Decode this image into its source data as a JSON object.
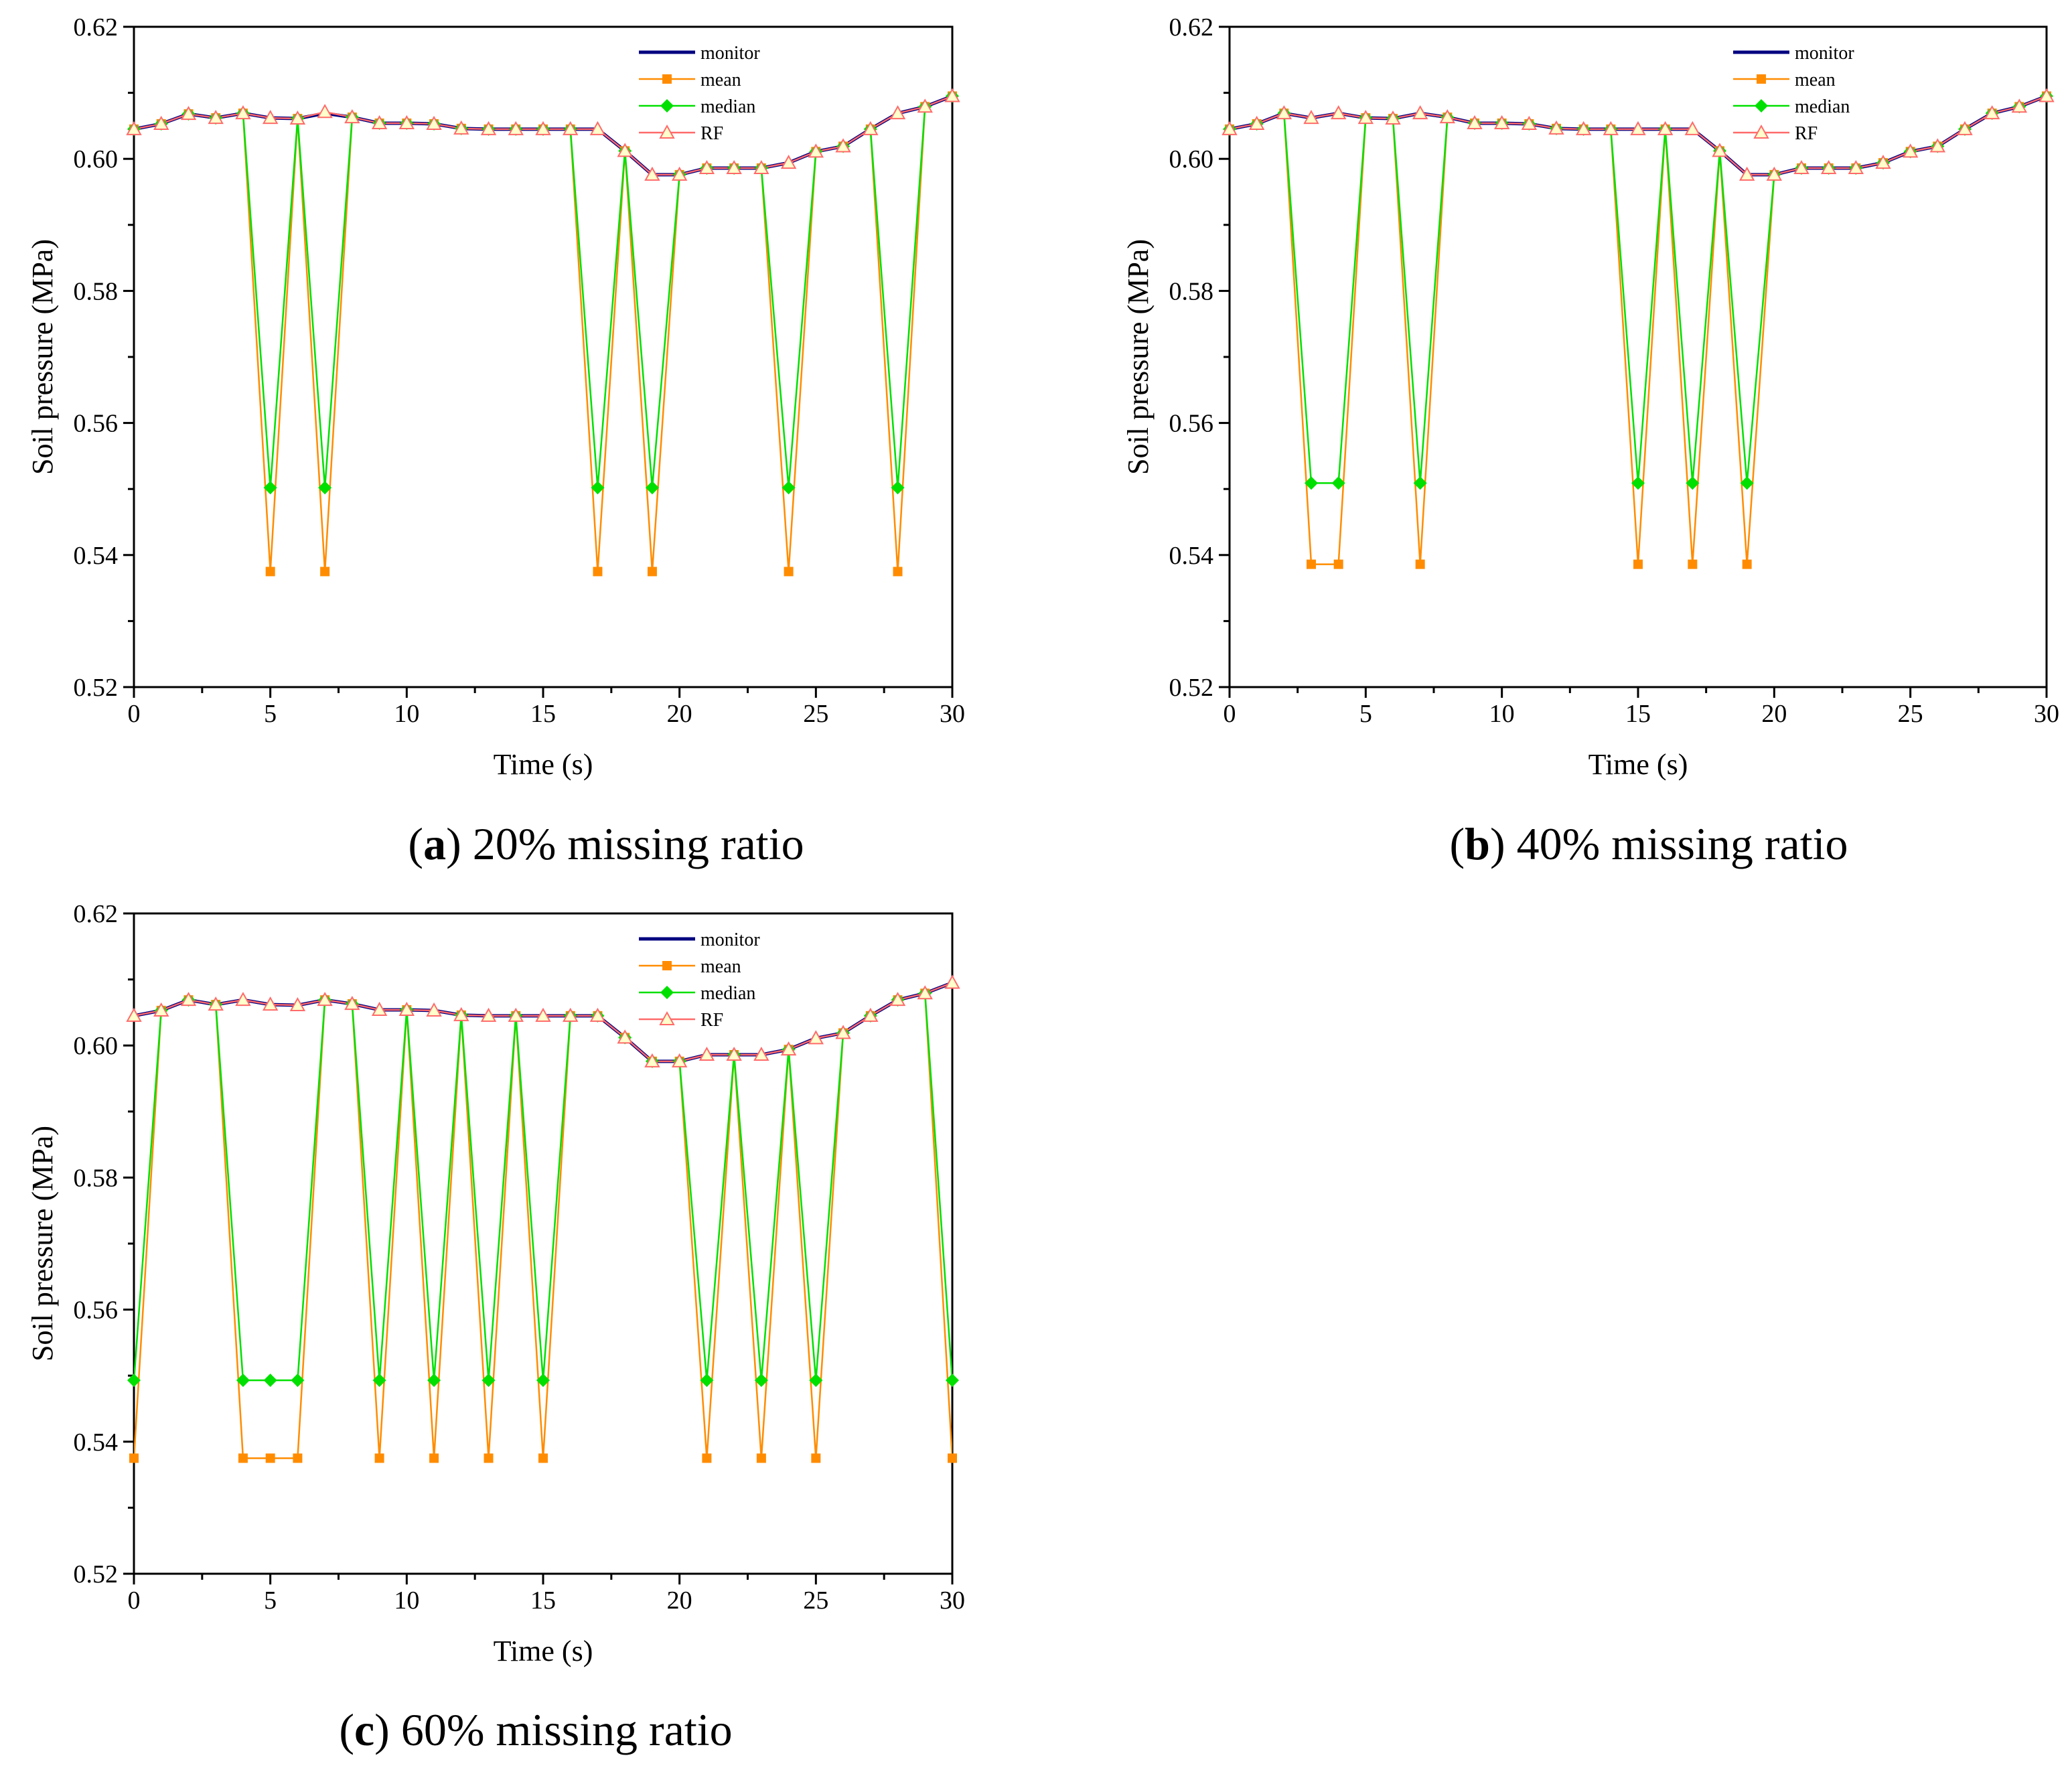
{
  "panels": [
    {
      "letter": "a",
      "caption": " 20% missing ratio"
    },
    {
      "letter": "b",
      "caption": " 40% missing ratio"
    },
    {
      "letter": "c",
      "caption": " 60% missing ratio"
    }
  ],
  "legend_labels": [
    "monitor",
    "mean",
    "median",
    "RF"
  ],
  "colors": {
    "monitor": "#000080",
    "mean": "#FF8C00",
    "median": "#00E000",
    "RF": "#FF6A6A",
    "rf_fill": "#FFFFCC"
  },
  "chart_data": [
    {
      "type": "line",
      "xlabel": "Time (s)",
      "ylabel": "Soil pressure (MPa)",
      "xlim": [
        0,
        30
      ],
      "ylim": [
        0.52,
        0.62
      ],
      "xticks": [
        "0",
        "5",
        "10",
        "15",
        "20",
        "25",
        "30"
      ],
      "yticks": [
        "0.52",
        "0.54",
        "0.56",
        "0.58",
        "0.60",
        "0.62"
      ],
      "legend_position": "top-right",
      "x": [
        0,
        1,
        2,
        3,
        4,
        5,
        6,
        7,
        8,
        9,
        10,
        11,
        12,
        13,
        14,
        15,
        16,
        17,
        18,
        19,
        20,
        21,
        22,
        23,
        24,
        25,
        26,
        27,
        28,
        29,
        30
      ],
      "series": [
        {
          "name": "monitor",
          "values": [
            0.6045,
            0.6053,
            0.6068,
            0.6062,
            0.6069,
            0.6062,
            0.6061,
            0.6069,
            0.6063,
            0.6054,
            0.6054,
            0.6053,
            0.6046,
            0.6045,
            0.6045,
            0.6045,
            0.6045,
            0.6045,
            0.6012,
            0.5976,
            0.5976,
            0.5986,
            0.5986,
            0.5986,
            0.5994,
            0.6011,
            0.6019,
            0.6045,
            0.6069,
            0.6079,
            0.6095
          ]
        },
        {
          "name": "mean",
          "values": [
            0.6045,
            0.6053,
            0.6068,
            0.6062,
            0.6069,
            0.5375,
            0.6061,
            0.5375,
            0.6063,
            0.6054,
            0.6054,
            0.6053,
            0.6046,
            0.6045,
            0.6045,
            0.6045,
            0.6045,
            0.5375,
            0.6012,
            0.5375,
            0.5976,
            0.5986,
            0.5986,
            0.5986,
            0.5375,
            0.6011,
            0.6019,
            0.6045,
            0.5375,
            0.6079,
            0.6095
          ]
        },
        {
          "name": "median",
          "values": [
            0.6045,
            0.6053,
            0.6068,
            0.6062,
            0.6069,
            0.5502,
            0.6061,
            0.5502,
            0.6063,
            0.6054,
            0.6054,
            0.6053,
            0.6046,
            0.6045,
            0.6045,
            0.6045,
            0.6045,
            0.5502,
            0.6012,
            0.5502,
            0.5976,
            0.5986,
            0.5986,
            0.5986,
            0.5502,
            0.6011,
            0.6019,
            0.6045,
            0.5502,
            0.6079,
            0.6095
          ]
        },
        {
          "name": "RF",
          "values": [
            0.6045,
            0.6053,
            0.6068,
            0.6062,
            0.6069,
            0.6062,
            0.6061,
            0.6071,
            0.6063,
            0.6054,
            0.6054,
            0.6053,
            0.6046,
            0.6045,
            0.6045,
            0.6045,
            0.6045,
            0.6045,
            0.6012,
            0.5976,
            0.5976,
            0.5986,
            0.5986,
            0.5986,
            0.5994,
            0.6011,
            0.6019,
            0.6045,
            0.6069,
            0.6079,
            0.6095
          ]
        }
      ]
    },
    {
      "type": "line",
      "xlabel": "Time (s)",
      "ylabel": "Soil pressure (MPa)",
      "xlim": [
        0,
        30
      ],
      "ylim": [
        0.52,
        0.62
      ],
      "xticks": [
        "0",
        "5",
        "10",
        "15",
        "20",
        "25",
        "30"
      ],
      "yticks": [
        "0.52",
        "0.54",
        "0.56",
        "0.58",
        "0.60",
        "0.62"
      ],
      "legend_position": "top-right",
      "x": [
        0,
        1,
        2,
        3,
        4,
        5,
        6,
        7,
        8,
        9,
        10,
        11,
        12,
        13,
        14,
        15,
        16,
        17,
        18,
        19,
        20,
        21,
        22,
        23,
        24,
        25,
        26,
        27,
        28,
        29,
        30
      ],
      "series": [
        {
          "name": "monitor",
          "values": [
            0.6045,
            0.6053,
            0.6069,
            0.6062,
            0.6069,
            0.6062,
            0.6061,
            0.6069,
            0.6063,
            0.6054,
            0.6054,
            0.6053,
            0.6046,
            0.6045,
            0.6045,
            0.6045,
            0.6045,
            0.6045,
            0.6012,
            0.5976,
            0.5976,
            0.5986,
            0.5986,
            0.5986,
            0.5994,
            0.6011,
            0.6019,
            0.6045,
            0.6069,
            0.6079,
            0.6095
          ]
        },
        {
          "name": "mean",
          "values": [
            0.6045,
            0.6053,
            0.6069,
            0.5386,
            0.5386,
            0.6062,
            0.6061,
            0.5386,
            0.6063,
            0.6054,
            0.6054,
            0.6053,
            0.6046,
            0.6045,
            0.6045,
            0.5386,
            0.6045,
            0.5386,
            0.6012,
            0.5386,
            0.5976,
            0.5986,
            0.5986,
            0.5986,
            0.5994,
            0.6011,
            0.6019,
            0.6045,
            0.6069,
            0.6079,
            0.6095
          ]
        },
        {
          "name": "median",
          "values": [
            0.6045,
            0.6053,
            0.6069,
            0.5509,
            0.5509,
            0.6062,
            0.6061,
            0.5509,
            0.6063,
            0.6054,
            0.6054,
            0.6053,
            0.6046,
            0.6045,
            0.6045,
            0.5509,
            0.6045,
            0.5509,
            0.6012,
            0.5509,
            0.5976,
            0.5986,
            0.5986,
            0.5986,
            0.5994,
            0.6011,
            0.6019,
            0.6045,
            0.6069,
            0.6079,
            0.6095
          ]
        },
        {
          "name": "RF",
          "values": [
            0.6045,
            0.6053,
            0.6069,
            0.6062,
            0.6069,
            0.6062,
            0.6061,
            0.6069,
            0.6063,
            0.6054,
            0.6054,
            0.6053,
            0.6046,
            0.6045,
            0.6045,
            0.6045,
            0.6045,
            0.6045,
            0.6012,
            0.5976,
            0.5976,
            0.5986,
            0.5986,
            0.5986,
            0.5994,
            0.6011,
            0.6019,
            0.6045,
            0.6069,
            0.6079,
            0.6095
          ]
        }
      ]
    },
    {
      "type": "line",
      "xlabel": "Time (s)",
      "ylabel": "Soil pressure (MPa)",
      "xlim": [
        0,
        30
      ],
      "ylim": [
        0.52,
        0.62
      ],
      "xticks": [
        "0",
        "5",
        "10",
        "15",
        "20",
        "25",
        "30"
      ],
      "yticks": [
        "0.52",
        "0.54",
        "0.56",
        "0.58",
        "0.60",
        "0.62"
      ],
      "legend_position": "top-right",
      "x": [
        0,
        1,
        2,
        3,
        4,
        5,
        6,
        7,
        8,
        9,
        10,
        11,
        12,
        13,
        14,
        15,
        16,
        17,
        18,
        19,
        20,
        21,
        22,
        23,
        24,
        25,
        26,
        27,
        28,
        29,
        30
      ],
      "series": [
        {
          "name": "monitor",
          "values": [
            0.6045,
            0.6053,
            0.6069,
            0.6062,
            0.6069,
            0.6062,
            0.6061,
            0.6069,
            0.6063,
            0.6054,
            0.6054,
            0.6053,
            0.6046,
            0.6045,
            0.6045,
            0.6045,
            0.6045,
            0.6045,
            0.6012,
            0.5976,
            0.5976,
            0.5986,
            0.5986,
            0.5986,
            0.5994,
            0.6011,
            0.6019,
            0.6045,
            0.6069,
            0.6079,
            0.6095
          ]
        },
        {
          "name": "mean",
          "values": [
            0.5375,
            0.6053,
            0.6069,
            0.6062,
            0.5375,
            0.5375,
            0.5375,
            0.6069,
            0.6063,
            0.5375,
            0.6054,
            0.5375,
            0.6046,
            0.5375,
            0.6045,
            0.5375,
            0.6045,
            0.6045,
            0.6012,
            0.5976,
            0.5976,
            0.5375,
            0.5986,
            0.5375,
            0.5994,
            0.5375,
            0.6019,
            0.6045,
            0.6069,
            0.6079,
            0.5375
          ]
        },
        {
          "name": "median",
          "values": [
            0.5493,
            0.6053,
            0.6069,
            0.6062,
            0.5493,
            0.5493,
            0.5493,
            0.6069,
            0.6063,
            0.5493,
            0.6054,
            0.5493,
            0.6046,
            0.5493,
            0.6045,
            0.5493,
            0.6045,
            0.6045,
            0.6012,
            0.5976,
            0.5976,
            0.5493,
            0.5986,
            0.5493,
            0.5994,
            0.5493,
            0.6019,
            0.6045,
            0.6069,
            0.6079,
            0.5493
          ]
        },
        {
          "name": "RF",
          "values": [
            0.6045,
            0.6053,
            0.6069,
            0.6062,
            0.6069,
            0.6062,
            0.6061,
            0.6069,
            0.6063,
            0.6054,
            0.6054,
            0.6053,
            0.6046,
            0.6045,
            0.6045,
            0.6045,
            0.6045,
            0.6045,
            0.6012,
            0.5976,
            0.5976,
            0.5986,
            0.5986,
            0.5986,
            0.5994,
            0.6011,
            0.6019,
            0.6045,
            0.6069,
            0.6079,
            0.6095
          ]
        }
      ]
    }
  ]
}
